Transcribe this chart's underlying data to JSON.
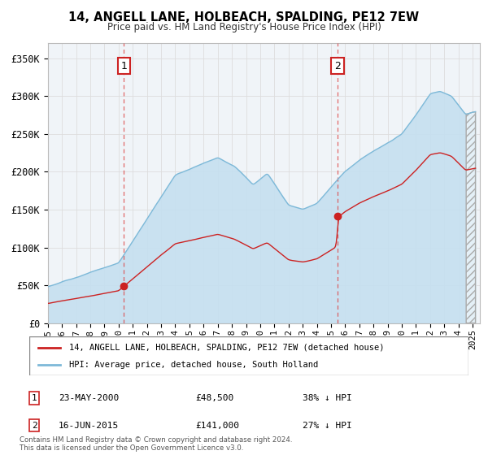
{
  "title": "14, ANGELL LANE, HOLBEACH, SPALDING, PE12 7EW",
  "subtitle": "Price paid vs. HM Land Registry's House Price Index (HPI)",
  "ylabel_ticks": [
    "£0",
    "£50K",
    "£100K",
    "£150K",
    "£200K",
    "£250K",
    "£300K",
    "£350K"
  ],
  "ytick_vals": [
    0,
    50000,
    100000,
    150000,
    200000,
    250000,
    300000,
    350000
  ],
  "ylim": [
    0,
    370000
  ],
  "xlim_start": 1995.0,
  "xlim_end": 2025.5,
  "hpi_color": "#7db9d8",
  "hpi_fill_color": "#c5dff0",
  "price_color": "#cc2222",
  "bg_color": "#f0f4f8",
  "grid_color": "#dddddd",
  "sale1_x": 2000.38,
  "sale1_y": 48500,
  "sale1_label": "1",
  "sale1_date": "23-MAY-2000",
  "sale1_price": "£48,500",
  "sale1_note": "38% ↓ HPI",
  "sale2_x": 2015.46,
  "sale2_y": 141000,
  "sale2_label": "2",
  "sale2_date": "16-JUN-2015",
  "sale2_price": "£141,000",
  "sale2_note": "27% ↓ HPI",
  "legend_line1": "14, ANGELL LANE, HOLBEACH, SPALDING, PE12 7EW (detached house)",
  "legend_line2": "HPI: Average price, detached house, South Holland",
  "footer1": "Contains HM Land Registry data © Crown copyright and database right 2024.",
  "footer2": "This data is licensed under the Open Government Licence v3.0.",
  "xtick_years": [
    1995,
    1996,
    1997,
    1998,
    1999,
    2000,
    2001,
    2002,
    2003,
    2004,
    2005,
    2006,
    2007,
    2008,
    2009,
    2010,
    2011,
    2012,
    2013,
    2014,
    2015,
    2016,
    2017,
    2018,
    2019,
    2020,
    2021,
    2022,
    2023,
    2024,
    2025
  ]
}
